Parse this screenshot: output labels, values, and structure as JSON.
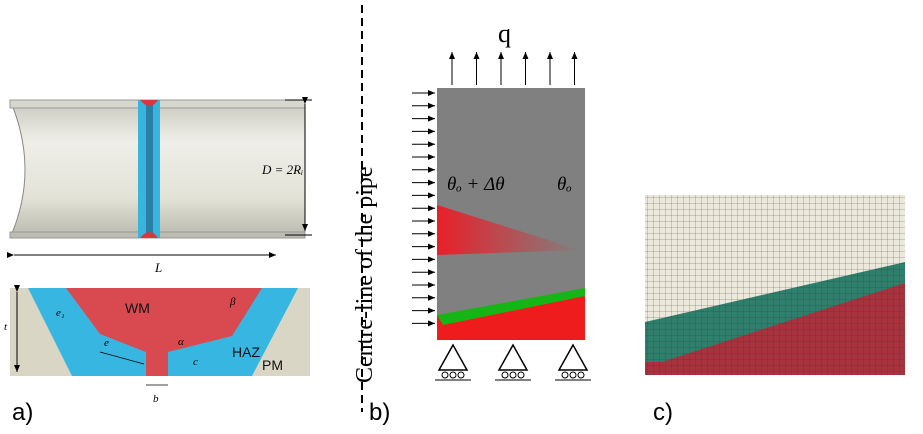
{
  "panel_a": {
    "label": "a)",
    "diameter": "D = 2Rᵢ",
    "length": "L",
    "weld_metal": "WM",
    "haz": "HAZ",
    "parent_metal": "PM",
    "thickness": "t",
    "e1": "e₁",
    "e": "e",
    "b": "b",
    "c": "c",
    "alpha": "α",
    "beta": "β"
  },
  "panel_b": {
    "label": "b)",
    "load": "q",
    "centre_line": "Centre-line of the pipe",
    "theta_inner": "θₒ + Δθ",
    "theta_outer": "θₒ"
  },
  "panel_c": {
    "label": "c)"
  }
}
